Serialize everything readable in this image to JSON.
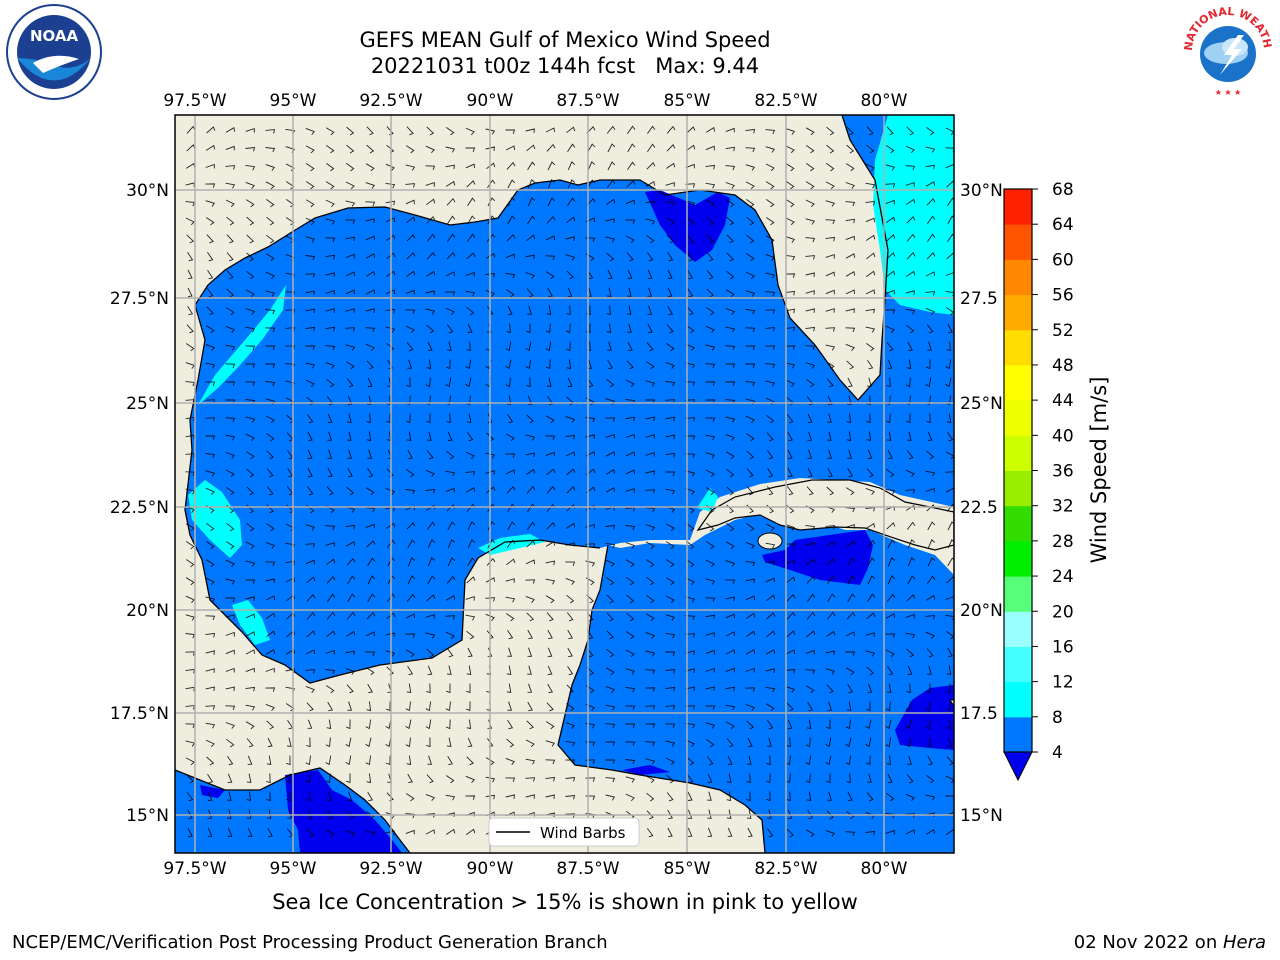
{
  "title": {
    "line1": "GEFS MEAN Gulf of Mexico Wind Speed",
    "line2": "20221031 t00z 144h fcst   Max: 9.44"
  },
  "caption": "Sea Ice Concentration > 15% is shown in pink to yellow",
  "footer": {
    "left": "NCEP/EMC/Verification Post Processing Product Generation Branch",
    "right_prefix": "02 Nov 2022 on ",
    "right_host": "Hera"
  },
  "logos": {
    "left_text": "NOAA",
    "right_text": "NATIONAL WEATHER SERVICE"
  },
  "map": {
    "lon_labels": [
      "97.5°W",
      "95°W",
      "92.5°W",
      "90°W",
      "87.5°W",
      "85°W",
      "82.5°W",
      "80°W"
    ],
    "lat_labels": [
      "30°N",
      "27.5°N",
      "25°N",
      "22.5°N",
      "20°N",
      "17.5°N",
      "15°N"
    ],
    "right_lat_labels": [
      "30°N",
      "27.5",
      "25°N",
      "22.5",
      "20°N",
      "17.5",
      "15°N"
    ],
    "legend_label": "Wind Barbs",
    "colors": {
      "land": "#efedde",
      "level_4_8": "#0077ff",
      "level_8_12": "#00ffff",
      "level_lt4": "#0000ee",
      "grid": "#b0b0b0"
    }
  },
  "colorbar": {
    "label": "Wind Speed [m/s]",
    "ticks": [
      "4",
      "8",
      "12",
      "16",
      "20",
      "24",
      "28",
      "32",
      "36",
      "40",
      "44",
      "48",
      "52",
      "56",
      "60",
      "64",
      "68"
    ],
    "colors": [
      "#0077ff",
      "#00ffff",
      "#44ffff",
      "#99ffff",
      "#55ff77",
      "#00ee00",
      "#33dd00",
      "#99ee00",
      "#ccff00",
      "#eeff00",
      "#ffff00",
      "#ffdd00",
      "#ffaa00",
      "#ff8800",
      "#ff5500",
      "#ff2200"
    ],
    "under_color": "#0000ee"
  }
}
